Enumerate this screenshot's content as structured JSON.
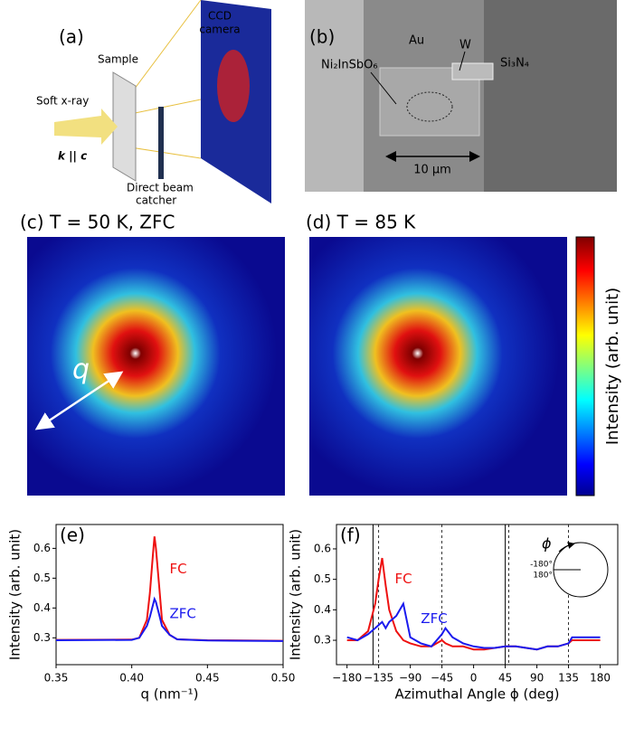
{
  "panels": {
    "a": {
      "label": "(a)",
      "ccd": [
        "CCD",
        "camera"
      ],
      "sample": "Sample",
      "source": "Soft x-ray",
      "orientation": "k || c",
      "catcher": [
        "Direct beam",
        "catcher"
      ]
    },
    "b": {
      "label": "(b)",
      "au": "Au",
      "w": "W",
      "crystal": "Ni₂InSbO₆",
      "membrane": "Si₃N₄",
      "scale": "10 μm"
    },
    "c": {
      "label": "(c) T = 50 K, ZFC",
      "vector": "q"
    },
    "d": {
      "label": "(d) T = 85 K"
    },
    "colorbar": {
      "label": "Intensity (arb. unit)"
    }
  },
  "chart_data": [
    {
      "type": "line",
      "panel_label": "(e)",
      "x_label": "q (nm⁻¹)",
      "y_label": "Intensity (arb. unit)",
      "x": [
        0.35,
        0.4,
        0.405,
        0.41,
        0.412,
        0.414,
        0.415,
        0.416,
        0.418,
        0.42,
        0.425,
        0.43,
        0.45,
        0.5
      ],
      "series": [
        {
          "name": "FC",
          "color": "#ee1111",
          "values": [
            0.293,
            0.294,
            0.3,
            0.36,
            0.45,
            0.58,
            0.64,
            0.6,
            0.48,
            0.36,
            0.31,
            0.295,
            0.292,
            0.29
          ]
        },
        {
          "name": "ZFC",
          "color": "#1a1aee",
          "values": [
            0.292,
            0.293,
            0.3,
            0.34,
            0.37,
            0.41,
            0.43,
            0.42,
            0.38,
            0.34,
            0.31,
            0.295,
            0.291,
            0.289
          ]
        }
      ],
      "xlim": [
        0.35,
        0.5
      ],
      "xticks": [
        0.35,
        {
          "value": 0.4,
          "label": "0.40"
        },
        0.45,
        {
          "value": 0.5,
          "label": "0.50"
        }
      ],
      "ylim": [
        0.21,
        0.68
      ],
      "yticks": [
        0.3,
        0.4,
        0.5,
        0.6
      ]
    },
    {
      "type": "line",
      "panel_label": "(f)",
      "x_label": "Azimuthal Angle ϕ (deg)",
      "y_label": "Intensity (arb. unit)",
      "x": [
        -180,
        -165,
        -150,
        -140,
        -135,
        -130,
        -125,
        -120,
        -110,
        -100,
        -90,
        -75,
        -60,
        -45,
        -40,
        -30,
        -15,
        0,
        15,
        30,
        45,
        55,
        60,
        75,
        90,
        105,
        120,
        135,
        140,
        150,
        165,
        180
      ],
      "series": [
        {
          "name": "FC",
          "color": "#ee1111",
          "values": [
            0.3,
            0.3,
            0.33,
            0.42,
            0.5,
            0.57,
            0.48,
            0.4,
            0.33,
            0.3,
            0.29,
            0.28,
            0.28,
            0.3,
            0.29,
            0.28,
            0.28,
            0.27,
            0.27,
            0.275,
            0.28,
            0.28,
            0.28,
            0.275,
            0.27,
            0.28,
            0.28,
            0.29,
            0.3,
            0.3,
            0.3,
            0.3
          ]
        },
        {
          "name": "ZFC",
          "color": "#1a1aee",
          "values": [
            0.31,
            0.3,
            0.32,
            0.34,
            0.35,
            0.36,
            0.34,
            0.36,
            0.38,
            0.42,
            0.31,
            0.29,
            0.28,
            0.32,
            0.34,
            0.31,
            0.29,
            0.28,
            0.275,
            0.275,
            0.28,
            0.28,
            0.28,
            0.275,
            0.27,
            0.28,
            0.28,
            0.29,
            0.31,
            0.31,
            0.31,
            0.31
          ]
        }
      ],
      "xlim": [
        -195,
        205
      ],
      "xticks": [
        {
          "value": -180,
          "label": "−180"
        },
        {
          "value": -135,
          "label": "−135"
        },
        {
          "value": -90,
          "label": "−90"
        },
        {
          "value": -45,
          "label": "−45"
        },
        0,
        45,
        90,
        135,
        180
      ],
      "ylim": [
        0.22,
        0.68
      ],
      "yticks": [
        0.3,
        0.4,
        0.5,
        0.6
      ],
      "solid_lines": [
        -143,
        45
      ],
      "dashed_lines": [
        -135,
        -45,
        50,
        135
      ],
      "inset": {
        "symbol": "ϕ",
        "labels": [
          "-180°",
          "180°"
        ]
      }
    }
  ]
}
